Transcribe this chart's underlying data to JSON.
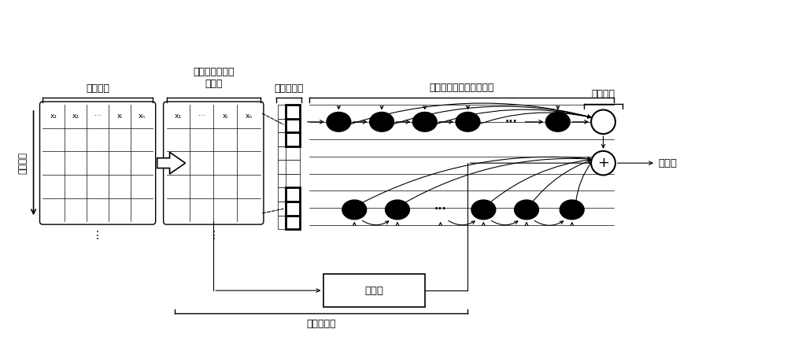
{
  "bg_color": "#ffffff",
  "text_color": "#000000",
  "label_orig": "原数据集",
  "label_rf": "随机森林特征筛\n选模块",
  "label_conv": "卷积层模块",
  "label_rnn": "循环层与循环跳跃层模块",
  "label_out": "输出模块",
  "label_time": "时间序列",
  "label_ar": "自回归",
  "label_ar_module": "自回归模块",
  "label_pred": "预测值",
  "font_size_label": 9,
  "font_size_cell": 7
}
